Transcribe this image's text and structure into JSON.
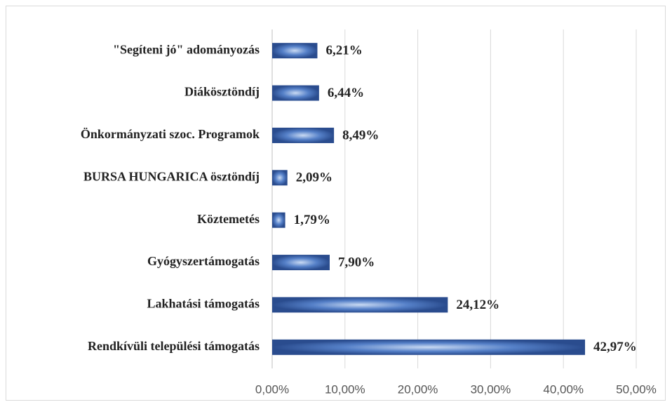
{
  "chart_data": {
    "type": "barh",
    "categories": [
      "\"Segíteni jó\" adományozás",
      "Diákösztöndíj",
      "Önkormányzati szoc. Programok",
      "BURSA HUNGARICA ösztöndíj",
      "Köztemetés",
      "Gyógyszertámogatás",
      "Lakhatási támogatás",
      "Rendkívüli települési támogatás"
    ],
    "values": [
      6.21,
      6.44,
      8.49,
      2.09,
      1.79,
      7.9,
      24.12,
      42.97
    ],
    "value_labels": [
      "6,21%",
      "6,44%",
      "8,49%",
      "2,09%",
      "1,79%",
      "7,90%",
      "24,12%",
      "42,97%"
    ],
    "color": "#3a66b8",
    "xlim": [
      0,
      50
    ],
    "xticks": [
      {
        "value": 0,
        "label": "0,00%"
      },
      {
        "value": 10,
        "label": "10,00%"
      },
      {
        "value": 20,
        "label": "20,00%"
      },
      {
        "value": 30,
        "label": "30,00%"
      },
      {
        "value": 40,
        "label": "40,00%"
      },
      {
        "value": 50,
        "label": "50,00%"
      }
    ],
    "grid": true
  }
}
